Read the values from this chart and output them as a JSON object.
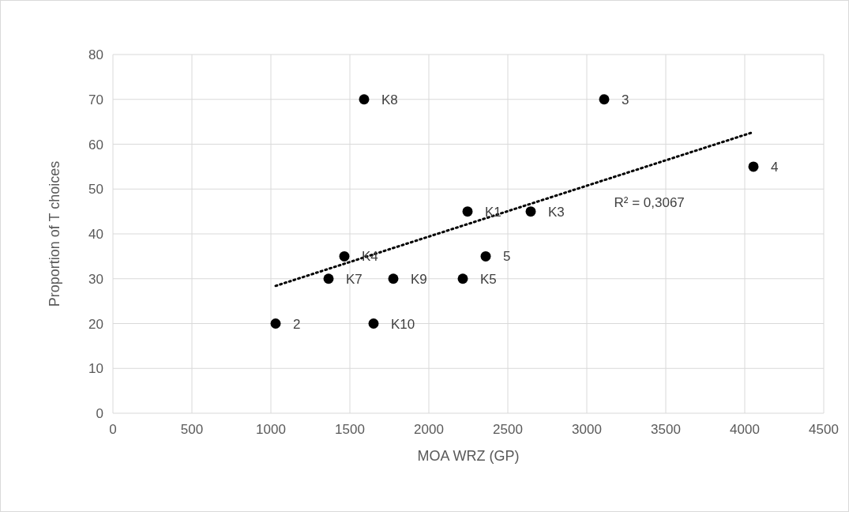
{
  "chart_data": {
    "type": "scatter",
    "xlabel": "MOA WRZ (GP)",
    "ylabel": "Proportion of T choices",
    "xlim": [
      0,
      4500
    ],
    "xticks": [
      0,
      500,
      1000,
      1500,
      2000,
      2500,
      3000,
      3500,
      4000,
      4500
    ],
    "ylim": [
      0,
      80
    ],
    "yticks": [
      0,
      10,
      20,
      30,
      40,
      50,
      60,
      70,
      80
    ],
    "grid": true,
    "marker": "circle",
    "series": [
      {
        "color": "#000000",
        "x": [
          1590,
          3110,
          4055,
          2245,
          2645,
          1465,
          2360,
          1365,
          1775,
          2215,
          1030,
          1650
        ],
        "values": [
          70,
          70,
          55,
          45,
          45,
          35,
          35,
          30,
          30,
          30,
          20,
          20
        ]
      },
      {
        "type": "line",
        "color": "#000000",
        "line_style": "dotted",
        "marker": "none",
        "x": [
          1030,
          4055
        ],
        "values": [
          28.4,
          62.7
        ]
      }
    ],
    "annotations": [
      {
        "text": "K8",
        "x": 1590,
        "y": 70
      },
      {
        "text": "3",
        "x": 3110,
        "y": 70
      },
      {
        "text": "4",
        "x": 4055,
        "y": 55
      },
      {
        "text": "K1",
        "x": 2245,
        "y": 45
      },
      {
        "text": "K3",
        "x": 2645,
        "y": 45
      },
      {
        "text": "K4",
        "x": 1465,
        "y": 35
      },
      {
        "text": "5",
        "x": 2360,
        "y": 35
      },
      {
        "text": "K7",
        "x": 1365,
        "y": 30
      },
      {
        "text": "K9",
        "x": 1775,
        "y": 30
      },
      {
        "text": "K5",
        "x": 2215,
        "y": 30
      },
      {
        "text": "2",
        "x": 1030,
        "y": 20
      },
      {
        "text": "K10",
        "x": 1650,
        "y": 20
      },
      "R² = 0,3067"
    ]
  }
}
